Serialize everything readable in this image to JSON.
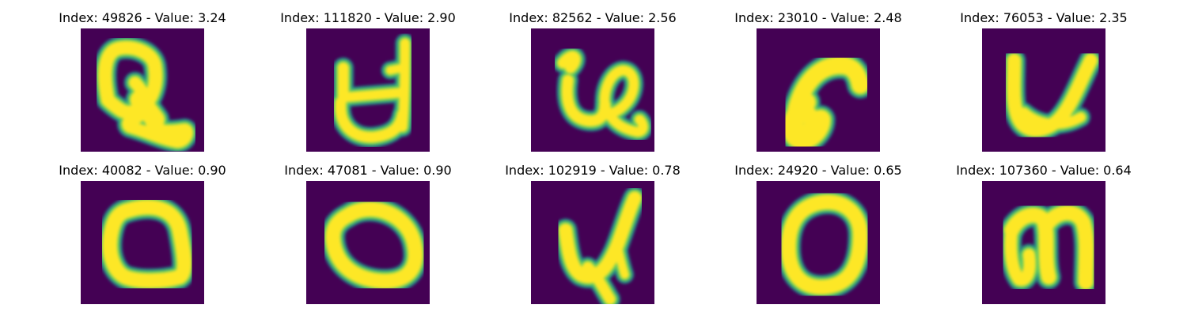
{
  "colormap": {
    "background": "#440154",
    "edge": "#21918c",
    "mid": "#5ec962",
    "stroke": "#fde725"
  },
  "samples": [
    {
      "title": "Index: 49826 - Value: 3.24",
      "glyph": "script-q"
    },
    {
      "title": "Index: 111820 - Value: 2.90",
      "glyph": "open-cup"
    },
    {
      "title": "Index: 82562 - Value: 2.56",
      "glyph": "loop-e"
    },
    {
      "title": "Index: 23010 - Value: 2.48",
      "glyph": "hook-c"
    },
    {
      "title": "Index: 76053 - Value: 2.35",
      "glyph": "letter-u"
    },
    {
      "title": "Index: 40082 - Value: 0.90",
      "glyph": "ring-o"
    },
    {
      "title": "Index: 47081 - Value: 0.90",
      "glyph": "oval-o"
    },
    {
      "title": "Index: 102919 - Value: 0.78",
      "glyph": "tail-u"
    },
    {
      "title": "Index: 24920 - Value: 0.65",
      "glyph": "tall-o"
    },
    {
      "title": "Index: 107360 - Value: 0.64",
      "glyph": "letter-n"
    }
  ]
}
